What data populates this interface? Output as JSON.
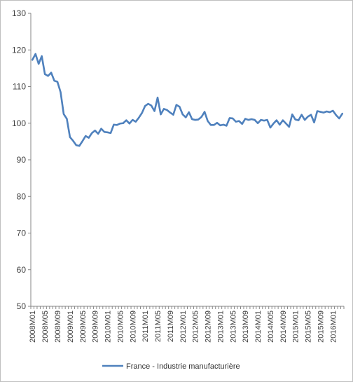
{
  "chart_data": {
    "type": "line",
    "title": "",
    "xlabel": "",
    "ylabel": "",
    "ylim": [
      50,
      130
    ],
    "yticks": [
      50,
      60,
      70,
      80,
      90,
      100,
      110,
      120,
      130
    ],
    "grid": "none",
    "legend_position": "bottom",
    "x": [
      "2008M01",
      "2008M02",
      "2008M03",
      "2008M04",
      "2008M05",
      "2008M06",
      "2008M07",
      "2008M08",
      "2008M09",
      "2008M10",
      "2008M11",
      "2008M12",
      "2009M01",
      "2009M02",
      "2009M03",
      "2009M04",
      "2009M05",
      "2009M06",
      "2009M07",
      "2009M08",
      "2009M09",
      "2009M10",
      "2009M11",
      "2009M12",
      "2010M01",
      "2010M02",
      "2010M03",
      "2010M04",
      "2010M05",
      "2010M06",
      "2010M07",
      "2010M08",
      "2010M09",
      "2010M10",
      "2010M11",
      "2010M12",
      "2011M01",
      "2011M02",
      "2011M03",
      "2011M04",
      "2011M05",
      "2011M06",
      "2011M07",
      "2011M08",
      "2011M09",
      "2011M10",
      "2011M11",
      "2011M12",
      "2012M01",
      "2012M02",
      "2012M03",
      "2012M04",
      "2012M05",
      "2012M06",
      "2012M07",
      "2012M08",
      "2012M09",
      "2012M10",
      "2012M11",
      "2012M12",
      "2013M01",
      "2013M02",
      "2013M03",
      "2013M04",
      "2013M05",
      "2013M06",
      "2013M07",
      "2013M08",
      "2013M09",
      "2013M10",
      "2013M11",
      "2013M12",
      "2014M01",
      "2014M02",
      "2014M03",
      "2014M04",
      "2014M05",
      "2014M06",
      "2014M07",
      "2014M08",
      "2014M09",
      "2014M10",
      "2014M11",
      "2014M12",
      "2015M01",
      "2015M02",
      "2015M03",
      "2015M04",
      "2015M05",
      "2015M06",
      "2015M07",
      "2015M08",
      "2015M09",
      "2015M10",
      "2015M11",
      "2015M12",
      "2016M01",
      "2016M02",
      "2016M03",
      "2016M04"
    ],
    "xtick_labels": [
      "2008M01",
      "2008M05",
      "2008M09",
      "2009M01",
      "2009M05",
      "2009M09",
      "2010M01",
      "2010M05",
      "2010M09",
      "2011M01",
      "2011M05",
      "2011M09",
      "2012M01",
      "2012M05",
      "2012M09",
      "2013M01",
      "2013M05",
      "2013M09",
      "2014M01",
      "2014M05",
      "2014M09",
      "2015M01",
      "2015M05",
      "2015M09",
      "2016M01"
    ],
    "series": [
      {
        "name": "France - Industrie manufacturière",
        "color": "#4f81bd",
        "values": [
          117.3,
          118.9,
          116.2,
          118.3,
          113.4,
          112.9,
          113.8,
          111.6,
          111.3,
          108.5,
          102.5,
          101.2,
          96.2,
          95.2,
          94.0,
          93.8,
          95.1,
          96.5,
          96.0,
          97.3,
          98.0,
          97.1,
          98.5,
          97.6,
          97.5,
          97.3,
          99.6,
          99.5,
          99.9,
          100.0,
          100.8,
          99.9,
          100.9,
          100.4,
          101.5,
          102.8,
          104.7,
          105.3,
          104.8,
          103.3,
          107.0,
          102.4,
          103.9,
          103.6,
          102.9,
          102.3,
          105.0,
          104.5,
          102.4,
          101.6,
          103.0,
          101.1,
          100.9,
          101.0,
          101.7,
          103.1,
          100.6,
          99.5,
          99.5,
          100.1,
          99.4,
          99.6,
          99.3,
          101.4,
          101.3,
          100.4,
          100.6,
          99.8,
          101.2,
          100.9,
          101.1,
          100.9,
          100.0,
          100.9,
          100.7,
          100.9,
          98.8,
          99.9,
          100.8,
          99.6,
          100.8,
          99.9,
          99.0,
          102.4,
          101.0,
          100.8,
          102.3,
          100.9,
          101.8,
          102.3,
          100.2,
          103.3,
          103.1,
          102.9,
          103.2,
          103.0,
          103.4,
          102.2,
          101.3,
          102.6
        ]
      }
    ]
  }
}
